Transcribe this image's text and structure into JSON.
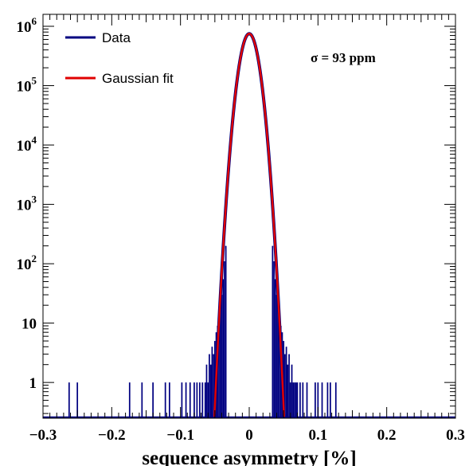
{
  "chart_data": {
    "type": "histogram",
    "xlabel": "sequence asymmetry [%]",
    "ylabel": "",
    "xlim": [
      -0.3,
      0.3
    ],
    "ylim": [
      0.25,
      1000000
    ],
    "yscale": "log",
    "x_ticks": [
      "−0.3",
      "−0.2",
      "−0.1",
      "0",
      "0.1",
      "0.2",
      "0.3"
    ],
    "y_ticks": [
      {
        "value": 1,
        "base": "1",
        "exp": ""
      },
      {
        "value": 10,
        "base": "10",
        "exp": ""
      },
      {
        "value": 100,
        "base": "10",
        "exp": "2"
      },
      {
        "value": 1000,
        "base": "10",
        "exp": "3"
      },
      {
        "value": 10000,
        "base": "10",
        "exp": "4"
      },
      {
        "value": 100000,
        "base": "10",
        "exp": "5"
      },
      {
        "value": 1000000,
        "base": "10",
        "exp": "6"
      }
    ],
    "annotation": "σ = 93 ppm",
    "legend_position": "top-left",
    "series": [
      {
        "name": "Data",
        "kind": "histogram",
        "color": "#000080",
        "bin_width": 0.002,
        "points": [
          [
            -0.262,
            1
          ],
          [
            -0.25,
            1
          ],
          [
            -0.174,
            1
          ],
          [
            -0.156,
            1
          ],
          [
            -0.14,
            1
          ],
          [
            -0.122,
            1
          ],
          [
            -0.116,
            1
          ],
          [
            -0.098,
            1
          ],
          [
            -0.092,
            1
          ],
          [
            -0.086,
            1
          ],
          [
            -0.08,
            1
          ],
          [
            -0.076,
            1
          ],
          [
            -0.072,
            1
          ],
          [
            -0.068,
            1
          ],
          [
            -0.064,
            1
          ],
          [
            -0.062,
            2
          ],
          [
            -0.06,
            1
          ],
          [
            -0.058,
            3
          ],
          [
            -0.056,
            2
          ],
          [
            -0.054,
            4
          ],
          [
            -0.052,
            3
          ],
          [
            -0.05,
            5
          ],
          [
            -0.048,
            7
          ],
          [
            -0.046,
            9
          ],
          [
            -0.044,
            12
          ],
          [
            -0.042,
            18
          ],
          [
            -0.04,
            30
          ],
          [
            -0.038,
            55
          ],
          [
            -0.036,
            110
          ],
          [
            -0.034,
            200
          ],
          [
            0.034,
            200
          ],
          [
            0.036,
            110
          ],
          [
            0.038,
            55
          ],
          [
            0.04,
            30
          ],
          [
            0.042,
            18
          ],
          [
            0.044,
            12
          ],
          [
            0.046,
            9
          ],
          [
            0.048,
            7
          ],
          [
            0.05,
            5
          ],
          [
            0.052,
            3
          ],
          [
            0.054,
            4
          ],
          [
            0.056,
            2
          ],
          [
            0.058,
            3
          ],
          [
            0.06,
            1
          ],
          [
            0.062,
            2
          ],
          [
            0.064,
            1
          ],
          [
            0.066,
            1
          ],
          [
            0.068,
            1
          ],
          [
            0.07,
            1
          ],
          [
            0.074,
            1
          ],
          [
            0.078,
            1
          ],
          [
            0.084,
            1
          ],
          [
            0.096,
            1
          ],
          [
            0.1,
            1
          ],
          [
            0.106,
            1
          ],
          [
            0.114,
            1
          ],
          [
            0.118,
            1
          ],
          [
            0.126,
            1
          ]
        ]
      },
      {
        "name": "Gaussian fit",
        "kind": "gaussian",
        "color": "#e00000",
        "amplitude": 750000,
        "mean": 0,
        "sigma": 0.0093
      }
    ]
  }
}
